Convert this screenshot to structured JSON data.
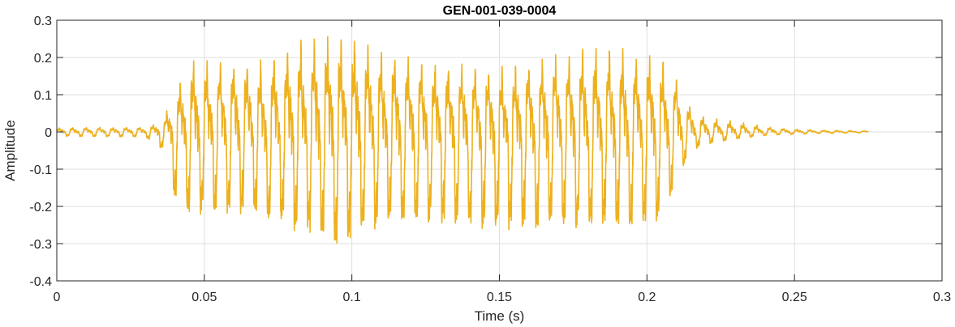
{
  "chart_data": {
    "type": "line",
    "title": "GEN-001-039-0004",
    "xlabel": "Time (s)",
    "ylabel": "Amplitude",
    "xlim": [
      0,
      0.3
    ],
    "ylim": [
      -0.4,
      0.3
    ],
    "grid": true,
    "x_ticks": [
      0,
      0.05,
      0.1,
      0.15,
      0.2,
      0.25,
      0.3
    ],
    "x_tick_labels": [
      "0",
      "0.05",
      "0.1",
      "0.15",
      "0.2",
      "0.25",
      "0.3"
    ],
    "y_ticks": [
      -0.4,
      -0.3,
      -0.2,
      -0.1,
      0,
      0.1,
      0.2,
      0.3
    ],
    "y_tick_labels": [
      "-0.4",
      "-0.3",
      "-0.2",
      "-0.1",
      "0",
      "0.1",
      "0.2",
      "0.3"
    ],
    "series": [
      {
        "color": "#EDB120",
        "envelope": {
          "t": [
            0,
            0.03,
            0.036,
            0.04,
            0.045,
            0.06,
            0.07,
            0.08,
            0.09,
            0.095,
            0.1,
            0.11,
            0.12,
            0.13,
            0.14,
            0.15,
            0.16,
            0.17,
            0.18,
            0.19,
            0.2,
            0.205,
            0.21,
            0.215,
            0.22,
            0.23,
            0.24,
            0.25,
            0.26,
            0.275
          ],
          "pos": [
            0.012,
            0.014,
            0.03,
            0.12,
            0.2,
            0.21,
            0.2,
            0.25,
            0.28,
            0.27,
            0.27,
            0.23,
            0.21,
            0.2,
            0.19,
            0.18,
            0.2,
            0.22,
            0.24,
            0.24,
            0.22,
            0.21,
            0.16,
            0.07,
            0.04,
            0.03,
            0.015,
            0.008,
            0.005,
            0.003
          ],
          "neg": [
            -0.012,
            -0.014,
            -0.05,
            -0.19,
            -0.23,
            -0.22,
            -0.24,
            -0.27,
            -0.3,
            -0.32,
            -0.3,
            -0.26,
            -0.25,
            -0.25,
            -0.27,
            -0.27,
            -0.27,
            -0.26,
            -0.27,
            -0.27,
            -0.26,
            -0.25,
            -0.14,
            -0.05,
            -0.035,
            -0.02,
            -0.01,
            -0.006,
            -0.004,
            -0.002
          ]
        },
        "t_end": 0.275,
        "f0_hz": 220
      }
    ]
  }
}
